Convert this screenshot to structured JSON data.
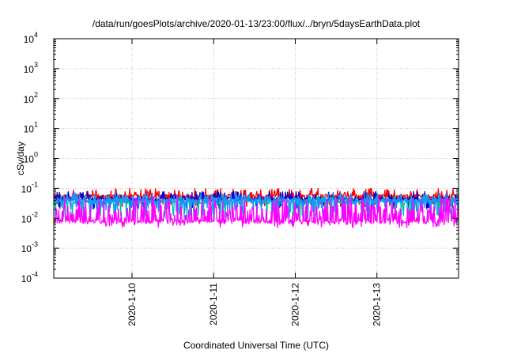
{
  "chart_data": {
    "type": "line",
    "title": "/data/run/goesPlots/archive/2020-01-13/23:00/flux/../bryn/5daysEarthData.plot",
    "xlabel": "Coordinated Universal Time (UTC)",
    "ylabel": "cSv/day",
    "yscale": "log",
    "ylim_exponents": [
      -4,
      4
    ],
    "y_tick_base": "10",
    "y_tick_exponents": [
      "-4",
      "-3",
      "-2",
      "-1",
      "0",
      "1",
      "2",
      "3",
      "4"
    ],
    "xlim": [
      "2020-01-09T01:00",
      "2020-01-14T00:00"
    ],
    "x_ticks": [
      "2020-1-10",
      "2020-1-11",
      "2020-1-12",
      "2020-1-13"
    ],
    "x_tick_dates": [
      "2020-01-10",
      "2020-01-11",
      "2020-01-12",
      "2020-01-13"
    ],
    "grid": true,
    "legend": "none",
    "series": [
      {
        "color": "#ff0000",
        "base": 0.055,
        "low": 0.03,
        "high": 0.1
      },
      {
        "color": "#0000cc",
        "base": 0.045,
        "low": 0.025,
        "high": 0.08
      },
      {
        "color": "#00bbbb",
        "base": 0.035,
        "low": 0.012,
        "high": 0.06
      },
      {
        "color": "#1e90ff",
        "base": 0.04,
        "low": 0.02,
        "high": 0.07
      },
      {
        "color": "#ff00ff",
        "base": 0.008,
        "low": 0.006,
        "high": 0.05
      }
    ]
  }
}
